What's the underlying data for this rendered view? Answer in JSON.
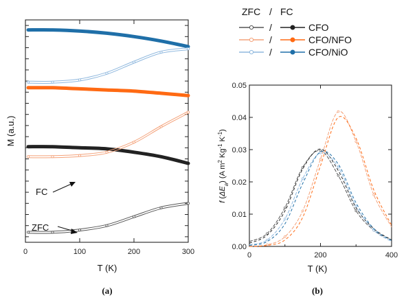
{
  "legend": {
    "header_zfc": "ZFC",
    "header_sep": "/",
    "header_fc": "FC",
    "entries": [
      {
        "sep": "/",
        "label": "CFO",
        "color": "#222222",
        "zfc_color": "#555555"
      },
      {
        "sep": "/",
        "label": "CFO/NFO",
        "color": "#ff6a13",
        "zfc_color": "#f4a27a"
      },
      {
        "sep": "/",
        "label": "CFO/NiO",
        "color": "#1f6fa8",
        "zfc_color": "#8fb8de"
      }
    ]
  },
  "chart_data": [
    {
      "panel": "(a)",
      "type": "line",
      "xlabel": "T (K)",
      "ylabel": "M (a.u.)",
      "xlim": [
        0,
        300
      ],
      "xticks": [
        0,
        100,
        200,
        300
      ],
      "ylim": [
        0,
        1
      ],
      "y_tick_labels_shown": false,
      "annotations": [
        {
          "text": "FC",
          "points_to": {
            "x": 130,
            "y": 0.39
          }
        },
        {
          "text": "ZFC",
          "points_to": {
            "x": 100,
            "y": 0.07
          }
        }
      ],
      "series": [
        {
          "name": "CFO",
          "mode": "FC",
          "x": [
            5,
            50,
            100,
            150,
            200,
            250,
            300
          ],
          "y": [
            0.43,
            0.43,
            0.425,
            0.42,
            0.405,
            0.385,
            0.355
          ]
        },
        {
          "name": "CFO",
          "mode": "ZFC",
          "x": [
            5,
            50,
            100,
            150,
            200,
            250,
            300
          ],
          "y": [
            0.045,
            0.045,
            0.055,
            0.075,
            0.115,
            0.155,
            0.175
          ]
        },
        {
          "name": "CFO/NFO",
          "mode": "FC",
          "x": [
            5,
            50,
            100,
            150,
            200,
            250,
            300
          ],
          "y": [
            0.695,
            0.695,
            0.69,
            0.685,
            0.68,
            0.67,
            0.66
          ]
        },
        {
          "name": "CFO/NFO",
          "mode": "ZFC",
          "x": [
            5,
            50,
            100,
            150,
            200,
            250,
            300
          ],
          "y": [
            0.385,
            0.385,
            0.39,
            0.405,
            0.45,
            0.52,
            0.585
          ]
        },
        {
          "name": "CFO/NiO",
          "mode": "FC",
          "x": [
            5,
            50,
            100,
            150,
            200,
            250,
            300
          ],
          "y": [
            0.955,
            0.955,
            0.95,
            0.94,
            0.925,
            0.905,
            0.88
          ]
        },
        {
          "name": "CFO/NiO",
          "mode": "ZFC",
          "x": [
            5,
            50,
            100,
            150,
            200,
            250,
            300
          ],
          "y": [
            0.72,
            0.72,
            0.73,
            0.76,
            0.81,
            0.855,
            0.87
          ]
        }
      ]
    },
    {
      "panel": "(b)",
      "type": "line",
      "xlabel": "T (K)",
      "ylabel": "f (ΔE_a) (A m² Kg⁻¹ K⁻¹)",
      "ylabel_parts": {
        "f": "f",
        "paren_open": " (",
        "delta": "ΔE",
        "delta_sub": "a",
        "paren_close": ")",
        "units_open": " (A m",
        "sup2": "2",
        "kg": " Kg",
        "sup_kg": "-1",
        "k": " K",
        "sup_k": "-1",
        "units_close": ")"
      },
      "xlim": [
        0,
        400
      ],
      "xticks": [
        0,
        200,
        400
      ],
      "ylim": [
        0,
        0.05
      ],
      "yticks": [
        "0.00",
        "0.01",
        "0.02",
        "0.03",
        "0.04",
        "0.05"
      ],
      "series": [
        {
          "name": "CFO",
          "mode": "ZFC",
          "peak_x": 195,
          "peak_y": 0.0297,
          "x": [
            0,
            50,
            100,
            150,
            200,
            250,
            300,
            350,
            400
          ],
          "y": [
            0.0015,
            0.004,
            0.012,
            0.0245,
            0.0297,
            0.022,
            0.011,
            0.005,
            0.002
          ]
        },
        {
          "name": "CFO",
          "mode": "FC",
          "peak_x": 200,
          "peak_y": 0.0302,
          "x": [
            0,
            50,
            100,
            150,
            200,
            250,
            300,
            350,
            400
          ],
          "y": [
            0.001,
            0.0035,
            0.011,
            0.024,
            0.0302,
            0.0235,
            0.012,
            0.0055,
            0.002
          ]
        },
        {
          "name": "CFO/NFO",
          "mode": "ZFC",
          "peak_x": 255,
          "peak_y": 0.0418,
          "x": [
            0,
            50,
            100,
            150,
            200,
            250,
            300,
            350,
            400
          ],
          "y": [
            0.0,
            0.0005,
            0.003,
            0.011,
            0.027,
            0.0418,
            0.0325,
            0.016,
            0.006
          ]
        },
        {
          "name": "CFO/NFO",
          "mode": "FC",
          "peak_x": 260,
          "peak_y": 0.0405,
          "x": [
            0,
            50,
            100,
            150,
            200,
            250,
            300,
            350,
            400
          ],
          "y": [
            0.0,
            0.0003,
            0.002,
            0.009,
            0.025,
            0.04,
            0.0335,
            0.0175,
            0.0065
          ]
        },
        {
          "name": "CFO/NiO",
          "mode": "ZFC",
          "peak_x": 205,
          "peak_y": 0.029,
          "x": [
            0,
            50,
            100,
            150,
            200,
            250,
            300,
            350,
            400
          ],
          "y": [
            0.0005,
            0.002,
            0.0085,
            0.021,
            0.029,
            0.0245,
            0.0125,
            0.005,
            0.0015
          ]
        },
        {
          "name": "CFO/NiO",
          "mode": "FC",
          "peak_x": 210,
          "peak_y": 0.0293,
          "x": [
            0,
            50,
            100,
            150,
            200,
            250,
            300,
            350,
            400
          ],
          "y": [
            0.0003,
            0.0015,
            0.007,
            0.0195,
            0.0293,
            0.0255,
            0.0135,
            0.0055,
            0.0018
          ]
        }
      ]
    }
  ]
}
